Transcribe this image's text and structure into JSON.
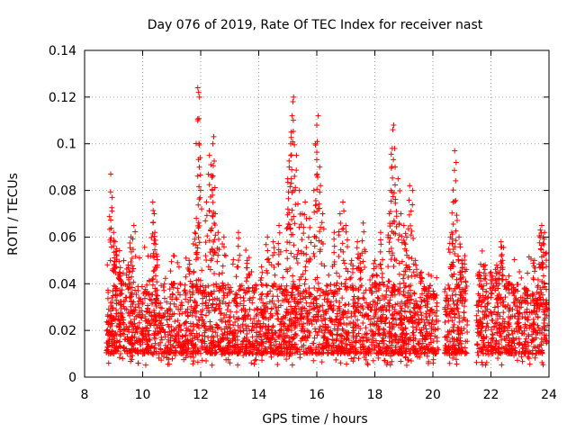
{
  "chart_data": {
    "type": "scatter",
    "title": "Day 076 of 2019, Rate Of TEC Index for receiver nast",
    "xlabel": "GPS time / hours",
    "ylabel": "ROTI / TECUs",
    "xlim": [
      8,
      24
    ],
    "ylim": [
      0,
      0.14
    ],
    "x_ticks": [
      8,
      10,
      12,
      14,
      16,
      18,
      20,
      22,
      24
    ],
    "x_tick_labels": [
      "8",
      "10",
      "12",
      "14",
      "16",
      "18",
      "20",
      "22",
      "24"
    ],
    "y_ticks": [
      0,
      0.02,
      0.04,
      0.06,
      0.08,
      0.1,
      0.12,
      0.14
    ],
    "y_tick_labels": [
      "0",
      "0.02",
      "0.04",
      "0.06",
      "0.08",
      "0.1",
      "0.12",
      "0.14"
    ],
    "grid": true,
    "marker": "+",
    "color": "#ff0000",
    "series": [
      {
        "name": "ROTI",
        "points": [
          [
            8.9,
            0.087
          ],
          [
            8.95,
            0.077
          ],
          [
            9.0,
            0.062
          ],
          [
            9.05,
            0.058
          ],
          [
            9.1,
            0.052
          ],
          [
            9.2,
            0.045
          ],
          [
            9.3,
            0.04
          ],
          [
            9.5,
            0.048
          ],
          [
            9.6,
            0.06
          ],
          [
            9.7,
            0.065
          ],
          [
            10.35,
            0.075
          ],
          [
            10.4,
            0.07
          ],
          [
            10.42,
            0.062
          ],
          [
            10.45,
            0.057
          ],
          [
            11.05,
            0.04
          ],
          [
            11.6,
            0.05
          ],
          [
            11.8,
            0.062
          ],
          [
            11.85,
            0.068
          ],
          [
            11.9,
            0.124
          ],
          [
            11.93,
            0.122
          ],
          [
            11.96,
            0.12
          ],
          [
            11.98,
            0.094
          ],
          [
            12.3,
            0.095
          ],
          [
            12.35,
            0.091
          ],
          [
            12.42,
            0.1
          ],
          [
            12.45,
            0.103
          ],
          [
            12.4,
            0.08
          ],
          [
            12.2,
            0.075
          ],
          [
            12.5,
            0.07
          ],
          [
            12.6,
            0.062
          ],
          [
            12.8,
            0.06
          ],
          [
            13.3,
            0.062
          ],
          [
            13.6,
            0.05
          ],
          [
            14.3,
            0.06
          ],
          [
            14.5,
            0.058
          ],
          [
            14.7,
            0.065
          ],
          [
            15.0,
            0.085
          ],
          [
            15.05,
            0.09
          ],
          [
            15.1,
            0.1
          ],
          [
            15.12,
            0.105
          ],
          [
            15.15,
            0.112
          ],
          [
            15.18,
            0.118
          ],
          [
            15.2,
            0.12
          ],
          [
            15.3,
            0.095
          ],
          [
            15.4,
            0.08
          ],
          [
            15.5,
            0.07
          ],
          [
            15.6,
            0.075
          ],
          [
            15.75,
            0.068
          ],
          [
            15.9,
            0.08
          ],
          [
            15.95,
            0.1
          ],
          [
            16.0,
            0.108
          ],
          [
            16.05,
            0.112
          ],
          [
            16.1,
            0.09
          ],
          [
            16.2,
            0.07
          ],
          [
            16.6,
            0.062
          ],
          [
            16.8,
            0.07
          ],
          [
            16.9,
            0.075
          ],
          [
            17.0,
            0.065
          ],
          [
            17.2,
            0.05
          ],
          [
            17.4,
            0.058
          ],
          [
            17.5,
            0.052
          ],
          [
            17.6,
            0.066
          ],
          [
            18.0,
            0.05
          ],
          [
            18.2,
            0.062
          ],
          [
            18.5,
            0.07
          ],
          [
            18.55,
            0.08
          ],
          [
            18.6,
            0.098
          ],
          [
            18.62,
            0.106
          ],
          [
            18.65,
            0.108
          ],
          [
            18.7,
            0.09
          ],
          [
            18.8,
            0.085
          ],
          [
            18.9,
            0.07
          ],
          [
            19.0,
            0.065
          ],
          [
            19.1,
            0.06
          ],
          [
            19.2,
            0.082
          ],
          [
            19.3,
            0.08
          ],
          [
            19.4,
            0.05
          ],
          [
            19.6,
            0.045
          ],
          [
            19.8,
            0.03
          ],
          [
            20.6,
            0.06
          ],
          [
            20.65,
            0.062
          ],
          [
            20.7,
            0.075
          ],
          [
            20.75,
            0.097
          ],
          [
            20.8,
            0.092
          ],
          [
            20.9,
            0.06
          ],
          [
            21.0,
            0.05
          ],
          [
            21.1,
            0.052
          ],
          [
            21.6,
            0.045
          ],
          [
            21.8,
            0.048
          ],
          [
            22.0,
            0.045
          ],
          [
            22.2,
            0.048
          ],
          [
            22.35,
            0.058
          ],
          [
            22.4,
            0.05
          ],
          [
            22.6,
            0.04
          ],
          [
            22.8,
            0.035
          ],
          [
            23.2,
            0.032
          ],
          [
            23.5,
            0.05
          ],
          [
            23.7,
            0.063
          ],
          [
            23.75,
            0.065
          ],
          [
            23.8,
            0.06
          ],
          [
            23.85,
            0.062
          ]
        ],
        "band": {
          "x_segments": [
            [
              8.75,
              20.2
            ],
            [
              20.4,
              21.2
            ],
            [
              21.5,
              23.95
            ]
          ],
          "typical_range": [
            0.01,
            0.04
          ],
          "min": 0.005
        }
      }
    ]
  }
}
